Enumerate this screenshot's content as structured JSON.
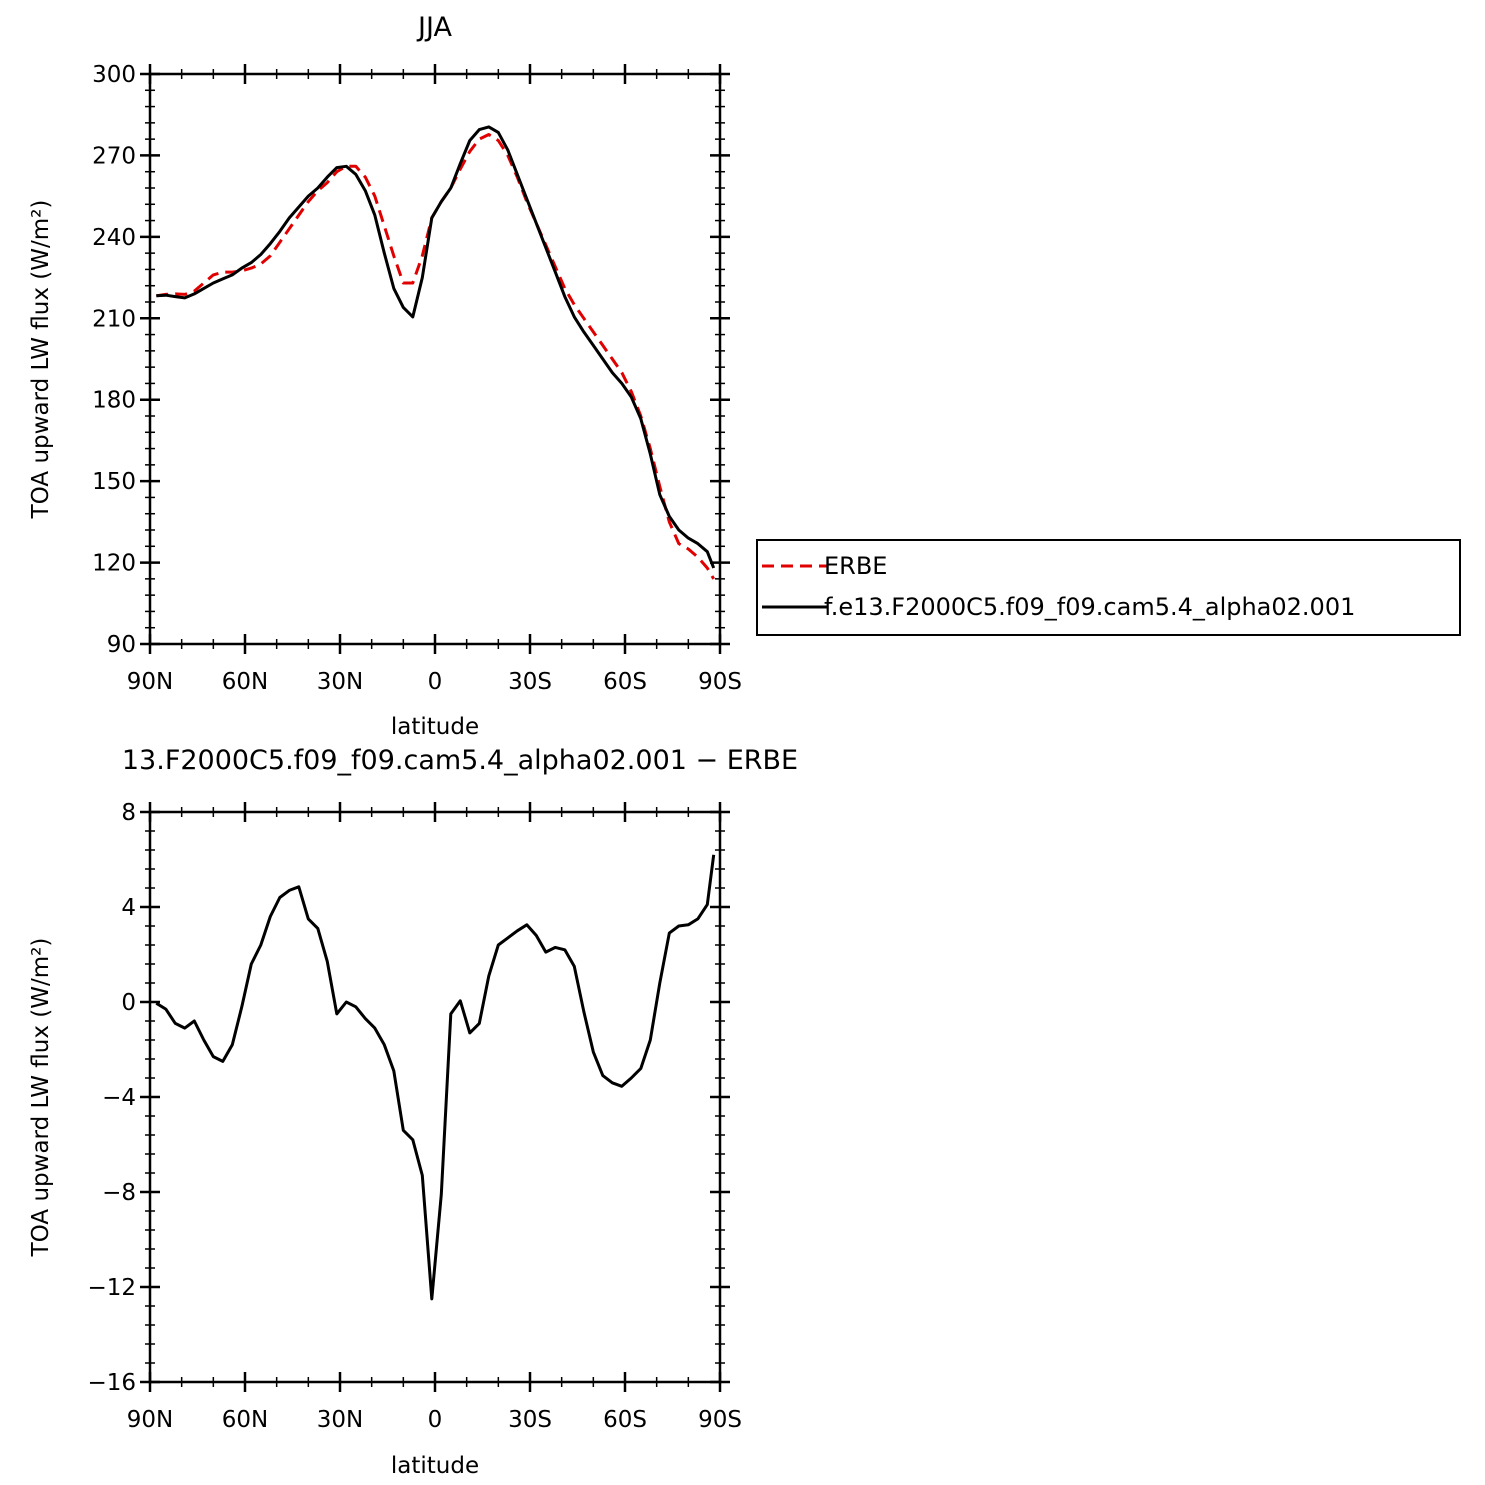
{
  "chart_data": [
    {
      "type": "line",
      "title": "JJA",
      "xlabel": "latitude",
      "ylabel": "TOA upward LW flux (W/m²)",
      "x_tick_labels": [
        "90N",
        "60N",
        "30N",
        "0",
        "30S",
        "60S",
        "90S"
      ],
      "x_tick_values": [
        -90,
        -60,
        -30,
        0,
        30,
        60,
        90
      ],
      "y_tick_labels": [
        "90",
        "120",
        "150",
        "180",
        "210",
        "240",
        "270",
        "300"
      ],
      "ylim": [
        90,
        300
      ],
      "xlim": [
        -90,
        90
      ],
      "x_axis_note": "x value is latitude with north negative (90N = -90, 90S = 90)",
      "legend_placement": "right",
      "series": [
        {
          "name": "ERBE",
          "color": "#e00000",
          "dash": "dashed",
          "x": [
            -88,
            -85,
            -82,
            -79,
            -76,
            -73,
            -70,
            -67,
            -64,
            -61,
            -58,
            -55,
            -52,
            -49,
            -46,
            -43,
            -40,
            -37,
            -34,
            -31,
            -28,
            -25,
            -22,
            -19,
            -16,
            -13,
            -10,
            -7,
            -4,
            -1,
            2,
            5,
            8,
            11,
            14,
            17,
            20,
            23,
            26,
            29,
            32,
            35,
            38,
            41,
            44,
            47,
            50,
            53,
            56,
            59,
            62,
            65,
            68,
            71,
            74,
            77,
            80,
            83,
            86,
            88
          ],
          "values": [
            218.3,
            218.8,
            219.0,
            218.8,
            220.0,
            223.0,
            226.0,
            227.0,
            227.0,
            227.5,
            228.5,
            230.0,
            233.0,
            238.0,
            243.0,
            248.0,
            253.0,
            257.0,
            260.0,
            264.0,
            266.0,
            266.0,
            262.0,
            255.0,
            244.0,
            233.0,
            223.0,
            223.0,
            233.0,
            247.0,
            253.0,
            258.0,
            265.0,
            271.5,
            276.0,
            277.7,
            275.5,
            270.0,
            262.0,
            253.0,
            245.0,
            237.0,
            229.0,
            221.0,
            215.0,
            210.0,
            205.0,
            200.0,
            195.0,
            190.0,
            183.0,
            174.0,
            162.0,
            148.0,
            135.0,
            127.0,
            125.0,
            122.0,
            118.0,
            114.0
          ]
        },
        {
          "name": "f.e13.F2000C5.f09_f09.cam5.4_alpha02.001",
          "color": "#000000",
          "dash": "solid",
          "x": [
            -88,
            -85,
            -82,
            -79,
            -76,
            -73,
            -70,
            -67,
            -64,
            -61,
            -58,
            -55,
            -52,
            -49,
            -46,
            -43,
            -40,
            -37,
            -34,
            -31,
            -28,
            -25,
            -22,
            -19,
            -16,
            -13,
            -10,
            -7,
            -4,
            -1,
            2,
            5,
            8,
            11,
            14,
            17,
            20,
            23,
            26,
            29,
            32,
            35,
            38,
            41,
            44,
            47,
            50,
            53,
            56,
            59,
            62,
            65,
            68,
            71,
            74,
            77,
            80,
            83,
            86,
            88
          ],
          "values": [
            218.3,
            218.5,
            218.0,
            217.5,
            219.0,
            221.0,
            223.0,
            224.5,
            226.0,
            228.5,
            230.5,
            233.5,
            237.5,
            242.0,
            247.0,
            251.0,
            255.0,
            258.0,
            262.0,
            265.5,
            266.0,
            263.0,
            257.0,
            248.0,
            234.0,
            221.0,
            214.0,
            210.5,
            225.0,
            247.0,
            253.0,
            258.0,
            267.0,
            275.5,
            279.5,
            280.5,
            278.5,
            272.0,
            263.0,
            254.0,
            245.0,
            236.0,
            227.0,
            218.0,
            210.5,
            205.0,
            200.0,
            195.0,
            190.0,
            186.0,
            181.0,
            173.0,
            160.0,
            145.0,
            137.0,
            132.0,
            129.0,
            127.0,
            124.0,
            118.0
          ]
        }
      ]
    },
    {
      "type": "line",
      "title": "13.F2000C5.f09_f09.cam5.4_alpha02.001 − ERBE",
      "xlabel": "latitude",
      "ylabel": "TOA upward LW flux (W/m²)",
      "x_tick_labels": [
        "90N",
        "60N",
        "30N",
        "0",
        "30S",
        "60S",
        "90S"
      ],
      "x_tick_values": [
        -90,
        -60,
        -30,
        0,
        30,
        60,
        90
      ],
      "y_tick_labels": [
        "8",
        "4",
        "0",
        "−4",
        "−8",
        "−12",
        "−16"
      ],
      "ylim": [
        -16,
        8
      ],
      "xlim": [
        -90,
        90
      ],
      "x_axis_note": "x value is latitude with north negative (90N = -90, 90S = 90)",
      "series": [
        {
          "color": "#000000",
          "dash": "solid",
          "x": [
            -88,
            -85,
            -82,
            -79,
            -76,
            -73,
            -70,
            -67,
            -64,
            -61,
            -58,
            -55,
            -52,
            -49,
            -46,
            -43,
            -40,
            -37,
            -34,
            -31,
            -28,
            -25,
            -22,
            -19,
            -16,
            -13,
            -10,
            -7,
            -4,
            -1,
            2,
            5,
            8,
            11,
            14,
            17,
            20,
            23,
            26,
            29,
            32,
            35,
            38,
            41,
            44,
            47,
            50,
            53,
            56,
            59,
            62,
            65,
            68,
            71,
            74,
            77,
            80,
            83,
            86,
            88
          ],
          "values": [
            -0.05,
            -0.3,
            -0.9,
            -1.1,
            -0.8,
            -1.6,
            -2.3,
            -2.5,
            -1.8,
            -0.2,
            1.6,
            2.4,
            3.6,
            4.4,
            4.7,
            4.85,
            3.5,
            3.1,
            1.7,
            -0.5,
            0.0,
            -0.2,
            -0.7,
            -1.1,
            -1.8,
            -2.9,
            -5.4,
            -5.8,
            -7.3,
            -12.5,
            -8.1,
            -0.5,
            0.05,
            -1.3,
            -0.9,
            1.1,
            2.4,
            2.7,
            3.0,
            3.25,
            2.8,
            2.1,
            2.3,
            2.2,
            1.5,
            -0.4,
            -2.1,
            -3.1,
            -3.4,
            -3.55,
            -3.2,
            -2.8,
            -1.6,
            0.8,
            2.9,
            3.2,
            3.25,
            3.5,
            4.1,
            6.2
          ]
        }
      ]
    }
  ]
}
